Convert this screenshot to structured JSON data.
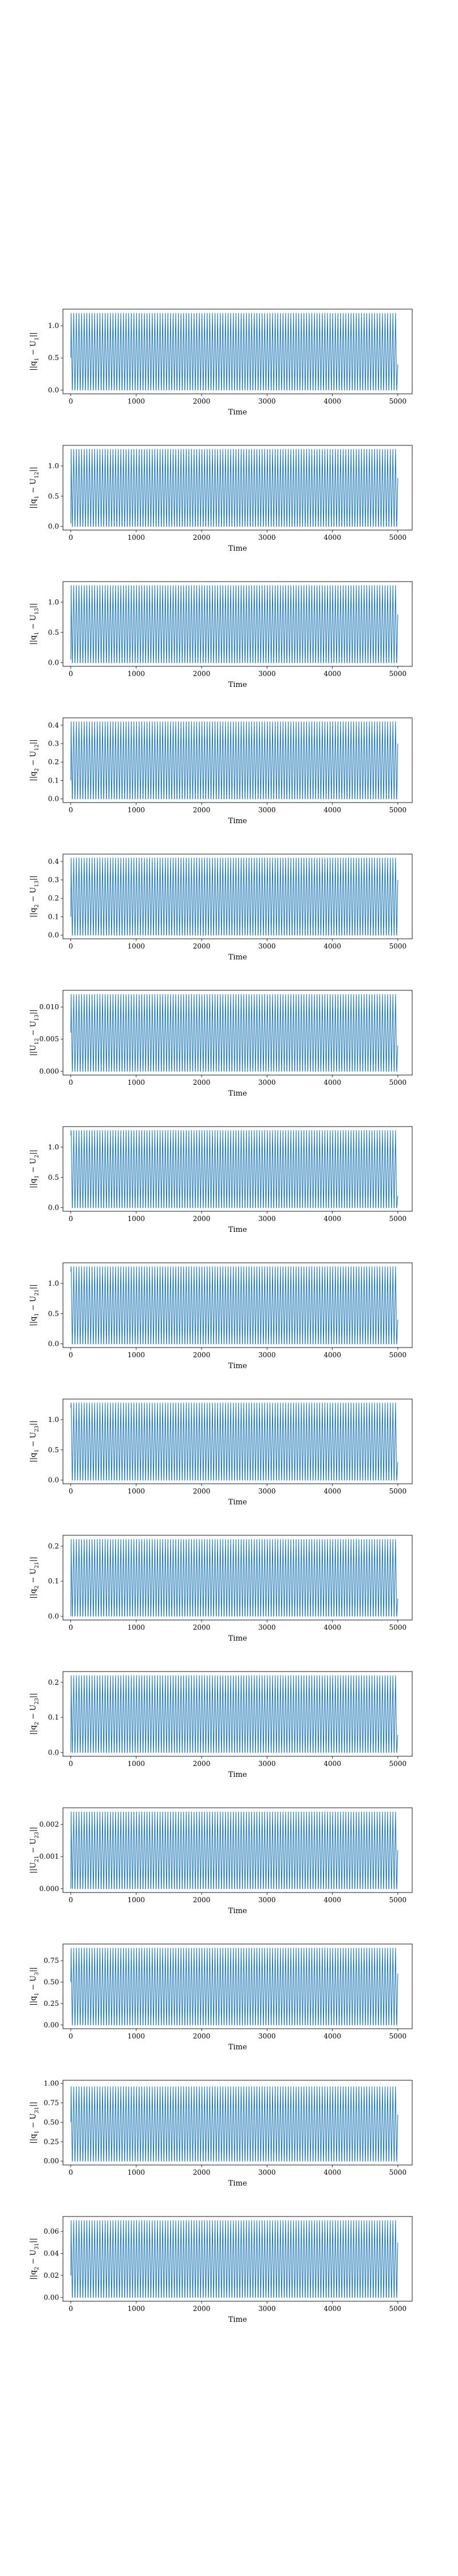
{
  "chart_data": [
    {
      "type": "line",
      "ylabel": "||q1 − U1||",
      "xlabel": "Time",
      "xlim": [
        -120,
        5220
      ],
      "ylim": [
        -0.06,
        1.26
      ],
      "yticks": [
        0.0,
        0.5,
        1.0
      ],
      "yticklabels": [
        "0.0",
        "0.5",
        "1.0"
      ],
      "xticks": [
        0,
        1000,
        2000,
        3000,
        4000,
        5000
      ],
      "xticklabels": [
        "0",
        "1000",
        "2000",
        "3000",
        "4000",
        "5000"
      ],
      "series": [
        {
          "x_range": [
            0,
            5000
          ],
          "y_min": 0.0,
          "y_max": 1.2,
          "first_y": 0.5,
          "last_y": 0.4,
          "cycles": 125,
          "color": "#1f77b4"
        }
      ]
    },
    {
      "type": "line",
      "ylabel": "||q1 − U12||",
      "xlabel": "Time",
      "xlim": [
        -120,
        5220
      ],
      "ylim": [
        -0.06,
        1.34
      ],
      "yticks": [
        0.0,
        0.5,
        1.0
      ],
      "yticklabels": [
        "0.0",
        "0.5",
        "1.0"
      ],
      "xticks": [
        0,
        1000,
        2000,
        3000,
        4000,
        5000
      ],
      "xticklabels": [
        "0",
        "1000",
        "2000",
        "3000",
        "4000",
        "5000"
      ],
      "series": [
        {
          "x_range": [
            0,
            5000
          ],
          "y_min": 0.0,
          "y_max": 1.28,
          "first_y": 0.05,
          "last_y": 0.8,
          "cycles": 125,
          "color": "#1f77b4"
        }
      ]
    },
    {
      "type": "line",
      "ylabel": "||q1 − U13||",
      "xlabel": "Time",
      "xlim": [
        -120,
        5220
      ],
      "ylim": [
        -0.06,
        1.34
      ],
      "yticks": [
        0.0,
        0.5,
        1.0
      ],
      "yticklabels": [
        "0.0",
        "0.5",
        "1.0"
      ],
      "xticks": [
        0,
        1000,
        2000,
        3000,
        4000,
        5000
      ],
      "xticklabels": [
        "0",
        "1000",
        "2000",
        "3000",
        "4000",
        "5000"
      ],
      "series": [
        {
          "x_range": [
            0,
            5000
          ],
          "y_min": 0.0,
          "y_max": 1.28,
          "first_y": 0.05,
          "last_y": 0.8,
          "cycles": 125,
          "color": "#1f77b4"
        }
      ]
    },
    {
      "type": "line",
      "ylabel": "||q2 − U12||",
      "xlabel": "Time",
      "xlim": [
        -120,
        5220
      ],
      "ylim": [
        -0.02,
        0.44
      ],
      "yticks": [
        0.0,
        0.1,
        0.2,
        0.3,
        0.4
      ],
      "yticklabels": [
        "0.0",
        "0.1",
        "0.2",
        "0.3",
        "0.4"
      ],
      "xticks": [
        0,
        1000,
        2000,
        3000,
        4000,
        5000
      ],
      "xticklabels": [
        "0",
        "1000",
        "2000",
        "3000",
        "4000",
        "5000"
      ],
      "series": [
        {
          "x_range": [
            0,
            5000
          ],
          "y_min": 0.0,
          "y_max": 0.42,
          "first_y": 0.1,
          "last_y": 0.3,
          "cycles": 125,
          "color": "#1f77b4"
        }
      ]
    },
    {
      "type": "line",
      "ylabel": "||q2 − U13||",
      "xlabel": "Time",
      "xlim": [
        -120,
        5220
      ],
      "ylim": [
        -0.02,
        0.44
      ],
      "yticks": [
        0.0,
        0.1,
        0.2,
        0.3,
        0.4
      ],
      "yticklabels": [
        "0.0",
        "0.1",
        "0.2",
        "0.3",
        "0.4"
      ],
      "xticks": [
        0,
        1000,
        2000,
        3000,
        4000,
        5000
      ],
      "xticklabels": [
        "0",
        "1000",
        "2000",
        "3000",
        "4000",
        "5000"
      ],
      "series": [
        {
          "x_range": [
            0,
            5000
          ],
          "y_min": 0.0,
          "y_max": 0.42,
          "first_y": 0.1,
          "last_y": 0.3,
          "cycles": 125,
          "color": "#1f77b4"
        }
      ]
    },
    {
      "type": "line",
      "ylabel": "||U12 − U13||",
      "xlabel": "Time",
      "xlim": [
        -120,
        5220
      ],
      "ylim": [
        -0.0006,
        0.0126
      ],
      "yticks": [
        0.0,
        0.005,
        0.01
      ],
      "yticklabels": [
        "0.000",
        "0.005",
        "0.010"
      ],
      "xticks": [
        0,
        1000,
        2000,
        3000,
        4000,
        5000
      ],
      "xticklabels": [
        "0",
        "1000",
        "2000",
        "3000",
        "4000",
        "5000"
      ],
      "series": [
        {
          "x_range": [
            0,
            5000
          ],
          "y_min": 0.0,
          "y_max": 0.012,
          "first_y": 0.006,
          "last_y": 0.004,
          "cycles": 125,
          "color": "#1f77b4"
        }
      ]
    },
    {
      "type": "line",
      "ylabel": "||q1 − U2||",
      "xlabel": "Time",
      "xlim": [
        -120,
        5220
      ],
      "ylim": [
        -0.06,
        1.34
      ],
      "yticks": [
        0.0,
        0.5,
        1.0
      ],
      "yticklabels": [
        "0.0",
        "0.5",
        "1.0"
      ],
      "xticks": [
        0,
        1000,
        2000,
        3000,
        4000,
        5000
      ],
      "xticklabels": [
        "0",
        "1000",
        "2000",
        "3000",
        "4000",
        "5000"
      ],
      "series": [
        {
          "x_range": [
            0,
            5000
          ],
          "y_min": 0.0,
          "y_max": 1.28,
          "first_y": 1.2,
          "last_y": 0.2,
          "cycles": 125,
          "color": "#1f77b4"
        }
      ]
    },
    {
      "type": "line",
      "ylabel": "||q1 − U21||",
      "xlabel": "Time",
      "xlim": [
        -120,
        5220
      ],
      "ylim": [
        -0.06,
        1.34
      ],
      "yticks": [
        0.0,
        0.5,
        1.0
      ],
      "yticklabels": [
        "0.0",
        "0.5",
        "1.0"
      ],
      "xticks": [
        0,
        1000,
        2000,
        3000,
        4000,
        5000
      ],
      "xticklabels": [
        "0",
        "1000",
        "2000",
        "3000",
        "4000",
        "5000"
      ],
      "series": [
        {
          "x_range": [
            0,
            5000
          ],
          "y_min": 0.0,
          "y_max": 1.28,
          "first_y": 1.2,
          "last_y": 0.4,
          "cycles": 125,
          "color": "#1f77b4"
        }
      ]
    },
    {
      "type": "line",
      "ylabel": "||q1 − U23||",
      "xlabel": "Time",
      "xlim": [
        -120,
        5220
      ],
      "ylim": [
        -0.06,
        1.34
      ],
      "yticks": [
        0.0,
        0.5,
        1.0
      ],
      "yticklabels": [
        "0.0",
        "0.5",
        "1.0"
      ],
      "xticks": [
        0,
        1000,
        2000,
        3000,
        4000,
        5000
      ],
      "xticklabels": [
        "0",
        "1000",
        "2000",
        "3000",
        "4000",
        "5000"
      ],
      "series": [
        {
          "x_range": [
            0,
            5000
          ],
          "y_min": 0.0,
          "y_max": 1.28,
          "first_y": 1.2,
          "last_y": 0.3,
          "cycles": 125,
          "color": "#1f77b4"
        }
      ]
    },
    {
      "type": "line",
      "ylabel": "||q2 − U21||",
      "xlabel": "Time",
      "xlim": [
        -120,
        5220
      ],
      "ylim": [
        -0.011,
        0.231
      ],
      "yticks": [
        0.0,
        0.1,
        0.2
      ],
      "yticklabels": [
        "0.0",
        "0.1",
        "0.2"
      ],
      "xticks": [
        0,
        1000,
        2000,
        3000,
        4000,
        5000
      ],
      "xticklabels": [
        "0",
        "1000",
        "2000",
        "3000",
        "4000",
        "5000"
      ],
      "series": [
        {
          "x_range": [
            0,
            5000
          ],
          "y_min": 0.0,
          "y_max": 0.22,
          "first_y": 0.0,
          "last_y": 0.05,
          "cycles": 125,
          "color": "#1f77b4"
        }
      ]
    },
    {
      "type": "line",
      "ylabel": "||q2 − U23||",
      "xlabel": "Time",
      "xlim": [
        -120,
        5220
      ],
      "ylim": [
        -0.011,
        0.231
      ],
      "yticks": [
        0.0,
        0.1,
        0.2
      ],
      "yticklabels": [
        "0.0",
        "0.1",
        "0.2"
      ],
      "xticks": [
        0,
        1000,
        2000,
        3000,
        4000,
        5000
      ],
      "xticklabels": [
        "0",
        "1000",
        "2000",
        "3000",
        "4000",
        "5000"
      ],
      "series": [
        {
          "x_range": [
            0,
            5000
          ],
          "y_min": 0.0,
          "y_max": 0.22,
          "first_y": 0.0,
          "last_y": 0.05,
          "cycles": 125,
          "color": "#1f77b4"
        }
      ]
    },
    {
      "type": "line",
      "ylabel": "||U21 − U23||",
      "xlabel": "Time",
      "xlim": [
        -120,
        5220
      ],
      "ylim": [
        -0.00012,
        0.00252
      ],
      "yticks": [
        0.0,
        0.001,
        0.002
      ],
      "yticklabels": [
        "0.000",
        "0.001",
        "0.002"
      ],
      "xticks": [
        0,
        1000,
        2000,
        3000,
        4000,
        5000
      ],
      "xticklabels": [
        "0",
        "1000",
        "2000",
        "3000",
        "4000",
        "5000"
      ],
      "series": [
        {
          "x_range": [
            0,
            5000
          ],
          "y_min": 0.0,
          "y_max": 0.0024,
          "first_y": 0.0,
          "last_y": 0.0012,
          "cycles": 125,
          "color": "#1f77b4"
        }
      ]
    },
    {
      "type": "line",
      "ylabel": "||q1 − U3||",
      "xlabel": "Time",
      "xlim": [
        -120,
        5220
      ],
      "ylim": [
        -0.045,
        0.945
      ],
      "yticks": [
        0.0,
        0.25,
        0.5,
        0.75
      ],
      "yticklabels": [
        "0.00",
        "0.25",
        "0.50",
        "0.75"
      ],
      "xticks": [
        0,
        1000,
        2000,
        3000,
        4000,
        5000
      ],
      "xticklabels": [
        "0",
        "1000",
        "2000",
        "3000",
        "4000",
        "5000"
      ],
      "series": [
        {
          "x_range": [
            0,
            5000
          ],
          "y_min": 0.0,
          "y_max": 0.9,
          "first_y": 0.5,
          "last_y": 0.6,
          "cycles": 125,
          "color": "#1f77b4"
        }
      ]
    },
    {
      "type": "line",
      "ylabel": "||q1 − U31||",
      "xlabel": "Time",
      "xlim": [
        -120,
        5220
      ],
      "ylim": [
        -0.05,
        1.04
      ],
      "yticks": [
        0.0,
        0.25,
        0.5,
        0.75,
        1.0
      ],
      "yticklabels": [
        "0.00",
        "0.25",
        "0.50",
        "0.75",
        "1.00"
      ],
      "xticks": [
        0,
        1000,
        2000,
        3000,
        4000,
        5000
      ],
      "xticklabels": [
        "0",
        "1000",
        "2000",
        "3000",
        "4000",
        "5000"
      ],
      "series": [
        {
          "x_range": [
            0,
            5000
          ],
          "y_min": 0.0,
          "y_max": 0.96,
          "first_y": 0.5,
          "last_y": 0.6,
          "cycles": 125,
          "color": "#1f77b4"
        }
      ]
    },
    {
      "type": "line",
      "ylabel": "||q2 − U31||",
      "xlabel": "Time",
      "xlim": [
        -120,
        5220
      ],
      "ylim": [
        -0.0035,
        0.0735
      ],
      "yticks": [
        0.0,
        0.02,
        0.04,
        0.06
      ],
      "yticklabels": [
        "0.00",
        "0.02",
        "0.04",
        "0.06"
      ],
      "xticks": [
        0,
        1000,
        2000,
        3000,
        4000,
        5000
      ],
      "xticklabels": [
        "0",
        "1000",
        "2000",
        "3000",
        "4000",
        "5000"
      ],
      "series": [
        {
          "x_range": [
            0,
            5000
          ],
          "y_min": 0.0,
          "y_max": 0.07,
          "first_y": 0.02,
          "last_y": 0.05,
          "cycles": 125,
          "color": "#1f77b4"
        }
      ]
    }
  ]
}
